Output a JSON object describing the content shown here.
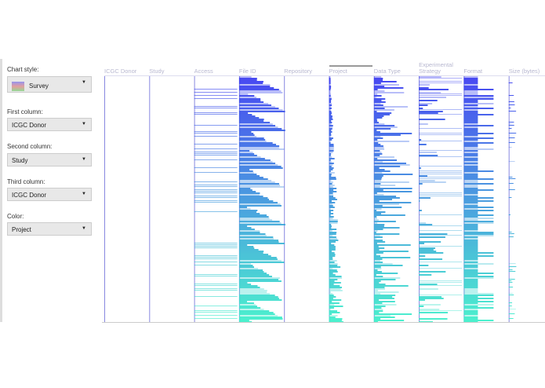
{
  "controls": [
    {
      "label": "Chart style:",
      "value": "Survey",
      "icon": "survey-chart-icon"
    },
    {
      "label": "First column:",
      "value": "ICGC Donor"
    },
    {
      "label": "Second column:",
      "value": "Study"
    },
    {
      "label": "Third column:",
      "value": "ICGC Donor"
    },
    {
      "label": "Color:",
      "value": "Project"
    }
  ],
  "chart_data": {
    "type": "survey",
    "columns": [
      "ICGC Donor",
      "Study",
      "Access",
      "File ID",
      "Repository",
      "Project",
      "Data Type",
      "Experimental Strategy",
      "Format",
      "Size (bytes)"
    ],
    "color_by": "Project",
    "colors": {
      "start": "#3535f0",
      "end": "#38f0c8"
    }
  }
}
